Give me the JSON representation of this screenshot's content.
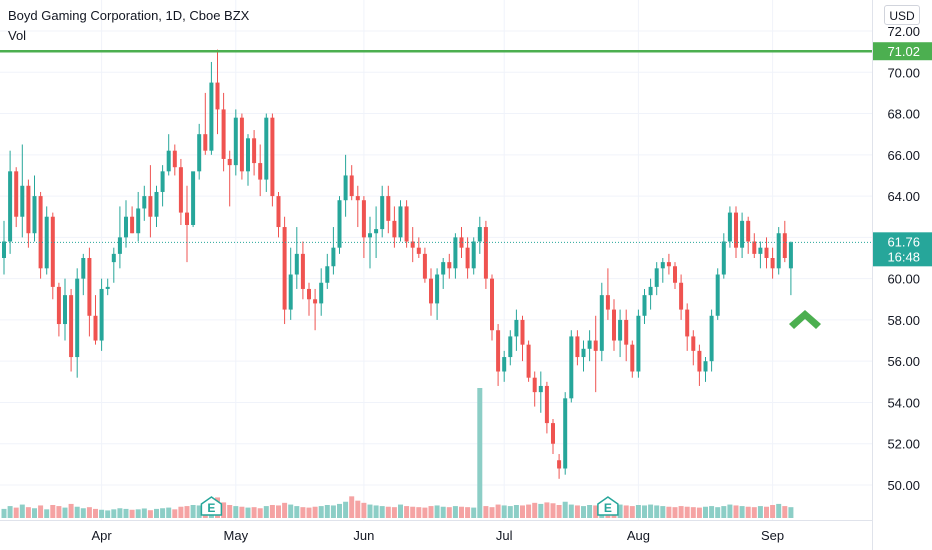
{
  "header": {
    "title": "Boyd Gaming Corporation, 1D, Cboe BZX",
    "volume_label": "Vol"
  },
  "currency": "USD",
  "price_axis": {
    "ticks": [
      "72.00",
      "70.00",
      "68.00",
      "66.00",
      "64.00",
      "62.00",
      "60.00",
      "58.00",
      "56.00",
      "54.00",
      "52.00",
      "50.00"
    ],
    "range": [
      48.6,
      73.3
    ]
  },
  "time_axis": {
    "labels": [
      "Apr",
      "May",
      "Jun",
      "Jul",
      "Aug",
      "Sep"
    ]
  },
  "resistance_line": {
    "price": 71.02,
    "label": "71.02",
    "color": "#4caf50"
  },
  "last_price": {
    "price": 61.76,
    "label": "61.76",
    "countdown": "16:48",
    "color": "#26a69a"
  },
  "earnings_markers": [
    {
      "label": "E",
      "month": "Apr-May"
    },
    {
      "label": "E",
      "month": "Jul-Aug"
    }
  ],
  "colors": {
    "up": "#26a69a",
    "down": "#ef5350",
    "vol_up": "#8ccec6",
    "vol_down": "#f5a3a3"
  },
  "annotation": {
    "type": "arrow-up",
    "color": "#4caf50"
  },
  "chart_data": {
    "type": "candlestick",
    "title": "Boyd Gaming Corporation, 1D, Cboe BZX",
    "ylim": [
      48.6,
      73.3
    ],
    "candles": [
      [
        61.0,
        62.8,
        60.2,
        61.8
      ],
      [
        61.8,
        66.2,
        61.2,
        65.2
      ],
      [
        65.2,
        65.4,
        62.5,
        63.0
      ],
      [
        63.0,
        66.5,
        62.0,
        64.5
      ],
      [
        64.5,
        64.8,
        61.5,
        62.2
      ],
      [
        62.2,
        65.0,
        61.8,
        64.0
      ],
      [
        64.0,
        64.2,
        60.0,
        60.5
      ],
      [
        60.5,
        63.5,
        60.2,
        63.0
      ],
      [
        63.0,
        63.2,
        59.0,
        59.6
      ],
      [
        59.6,
        59.8,
        57.2,
        57.8
      ],
      [
        57.8,
        60.0,
        57.0,
        59.2
      ],
      [
        59.2,
        59.5,
        55.5,
        56.2
      ],
      [
        56.2,
        60.5,
        55.2,
        60.0
      ],
      [
        60.0,
        61.2,
        59.2,
        61.0
      ],
      [
        61.0,
        61.5,
        57.2,
        58.2
      ],
      [
        58.2,
        59.2,
        56.8,
        57.0
      ],
      [
        57.0,
        60.0,
        56.5,
        59.5
      ],
      [
        59.5,
        60.0,
        59.2,
        59.6
      ],
      [
        60.8,
        61.5,
        59.8,
        61.2
      ],
      [
        61.2,
        63.5,
        60.5,
        62.0
      ],
      [
        62.0,
        63.8,
        61.5,
        63.0
      ],
      [
        63.0,
        63.5,
        62.2,
        62.2
      ],
      [
        62.2,
        64.2,
        61.8,
        63.4
      ],
      [
        63.4,
        64.5,
        62.8,
        64.0
      ],
      [
        64.0,
        65.5,
        62.0,
        63.0
      ],
      [
        63.0,
        64.5,
        62.5,
        64.2
      ],
      [
        64.2,
        65.5,
        63.5,
        65.2
      ],
      [
        65.2,
        67.0,
        65.0,
        66.2
      ],
      [
        66.2,
        66.5,
        65.0,
        65.4
      ],
      [
        65.4,
        65.8,
        62.6,
        63.2
      ],
      [
        63.2,
        64.5,
        60.8,
        62.6
      ],
      [
        62.6,
        65.0,
        62.5,
        65.2
      ],
      [
        65.2,
        67.5,
        64.8,
        67.0
      ],
      [
        67.0,
        69.0,
        66.0,
        66.2
      ],
      [
        66.2,
        70.5,
        66.0,
        69.5
      ],
      [
        69.5,
        71.1,
        67.0,
        68.2
      ],
      [
        68.2,
        69.0,
        65.2,
        65.8
      ],
      [
        65.8,
        66.2,
        63.5,
        65.5
      ],
      [
        65.5,
        68.2,
        65.0,
        67.8
      ],
      [
        67.8,
        68.0,
        64.8,
        65.2
      ],
      [
        65.2,
        67.0,
        64.5,
        66.8
      ],
      [
        66.8,
        67.2,
        65.0,
        65.6
      ],
      [
        65.6,
        66.5,
        64.0,
        64.8
      ],
      [
        64.8,
        68.0,
        64.2,
        67.8
      ],
      [
        67.8,
        68.0,
        63.5,
        64.0
      ],
      [
        64.0,
        64.2,
        62.0,
        62.5
      ],
      [
        62.5,
        63.0,
        57.8,
        58.5
      ],
      [
        58.5,
        61.5,
        58.0,
        60.2
      ],
      [
        60.2,
        62.5,
        59.5,
        61.2
      ],
      [
        61.2,
        61.8,
        59.0,
        59.5
      ],
      [
        59.5,
        59.8,
        58.2,
        59.0
      ],
      [
        59.0,
        59.5,
        57.5,
        58.8
      ],
      [
        58.8,
        60.5,
        58.2,
        59.8
      ],
      [
        59.8,
        61.2,
        59.5,
        60.6
      ],
      [
        60.6,
        62.5,
        60.2,
        61.5
      ],
      [
        61.5,
        64.0,
        61.2,
        63.8
      ],
      [
        63.8,
        66.0,
        63.0,
        65.0
      ],
      [
        65.0,
        65.5,
        63.8,
        64.0
      ],
      [
        64.0,
        64.5,
        62.5,
        63.8
      ],
      [
        63.8,
        64.0,
        61.0,
        62.0
      ],
      [
        62.0,
        63.0,
        60.5,
        62.2
      ],
      [
        62.2,
        63.5,
        61.0,
        62.4
      ],
      [
        62.4,
        64.5,
        62.0,
        64.0
      ],
      [
        64.0,
        64.5,
        62.2,
        62.8
      ],
      [
        62.8,
        63.5,
        61.5,
        62.0
      ],
      [
        62.0,
        63.8,
        61.8,
        63.5
      ],
      [
        63.5,
        63.8,
        61.5,
        61.8
      ],
      [
        61.8,
        62.5,
        60.8,
        61.5
      ],
      [
        61.5,
        62.0,
        61.0,
        61.2
      ],
      [
        61.2,
        61.5,
        59.8,
        60.0
      ],
      [
        60.0,
        60.5,
        58.2,
        58.8
      ],
      [
        58.8,
        60.5,
        58.0,
        60.2
      ],
      [
        60.2,
        61.0,
        59.5,
        60.8
      ],
      [
        60.8,
        61.2,
        60.0,
        60.5
      ],
      [
        60.5,
        62.2,
        60.0,
        62.0
      ],
      [
        62.0,
        62.5,
        61.0,
        61.5
      ],
      [
        61.5,
        62.0,
        60.0,
        60.5
      ],
      [
        60.5,
        62.0,
        60.2,
        61.8
      ],
      [
        61.8,
        63.0,
        61.2,
        62.5
      ],
      [
        62.5,
        62.8,
        59.5,
        60.0
      ],
      [
        60.0,
        60.2,
        57.0,
        57.5
      ],
      [
        57.5,
        57.8,
        54.8,
        55.5
      ],
      [
        55.5,
        56.5,
        55.0,
        56.2
      ],
      [
        56.2,
        57.5,
        55.8,
        57.2
      ],
      [
        57.2,
        58.5,
        56.5,
        58.0
      ],
      [
        58.0,
        58.2,
        56.0,
        56.8
      ],
      [
        56.8,
        57.0,
        55.0,
        55.2
      ],
      [
        55.2,
        55.5,
        53.8,
        54.5
      ],
      [
        54.5,
        55.5,
        53.5,
        54.8
      ],
      [
        54.8,
        55.0,
        52.5,
        53.0
      ],
      [
        53.0,
        53.2,
        51.5,
        52.0
      ],
      [
        51.2,
        51.5,
        50.3,
        50.8
      ],
      [
        50.8,
        54.5,
        50.5,
        54.2
      ],
      [
        54.2,
        57.5,
        54.0,
        57.2
      ],
      [
        57.2,
        57.5,
        55.8,
        56.2
      ],
      [
        56.2,
        57.0,
        55.5,
        56.6
      ],
      [
        56.6,
        57.5,
        56.0,
        57.0
      ],
      [
        57.0,
        58.2,
        54.5,
        56.5
      ],
      [
        56.5,
        59.8,
        56.0,
        59.2
      ],
      [
        59.2,
        60.5,
        58.0,
        58.5
      ],
      [
        58.5,
        59.0,
        56.5,
        57.0
      ],
      [
        57.0,
        58.5,
        56.2,
        58.0
      ],
      [
        58.0,
        58.5,
        56.0,
        56.8
      ],
      [
        56.8,
        57.0,
        55.2,
        55.5
      ],
      [
        55.5,
        58.5,
        55.2,
        58.2
      ],
      [
        58.2,
        59.5,
        57.8,
        59.2
      ],
      [
        59.2,
        60.0,
        58.5,
        59.6
      ],
      [
        59.6,
        60.8,
        59.2,
        60.5
      ],
      [
        60.5,
        61.0,
        59.8,
        60.8
      ],
      [
        60.8,
        61.2,
        60.2,
        60.6
      ],
      [
        60.6,
        60.8,
        59.5,
        59.8
      ],
      [
        59.8,
        60.2,
        58.0,
        58.5
      ],
      [
        58.5,
        58.8,
        56.5,
        57.2
      ],
      [
        57.2,
        57.5,
        55.8,
        56.5
      ],
      [
        56.5,
        56.8,
        54.8,
        55.5
      ],
      [
        55.5,
        56.2,
        55.0,
        56.0
      ],
      [
        56.0,
        58.5,
        55.5,
        58.2
      ],
      [
        58.2,
        60.5,
        58.0,
        60.2
      ],
      [
        60.2,
        62.2,
        60.0,
        61.8
      ],
      [
        61.8,
        63.5,
        61.5,
        63.2
      ],
      [
        63.2,
        63.5,
        61.0,
        61.5
      ],
      [
        61.5,
        63.2,
        61.0,
        62.8
      ],
      [
        62.8,
        63.0,
        61.2,
        61.8
      ],
      [
        61.8,
        62.2,
        61.0,
        61.2
      ],
      [
        61.2,
        61.8,
        60.5,
        61.5
      ],
      [
        61.5,
        62.0,
        60.5,
        61.0
      ],
      [
        61.0,
        61.5,
        60.0,
        60.5
      ],
      [
        60.5,
        62.5,
        60.2,
        62.2
      ],
      [
        62.2,
        62.8,
        60.8,
        61.0
      ],
      [
        60.5,
        61.8,
        59.2,
        61.76
      ]
    ],
    "volume": [
      0.42,
      0.55,
      0.48,
      0.62,
      0.5,
      0.45,
      0.58,
      0.4,
      0.6,
      0.55,
      0.48,
      0.65,
      0.52,
      0.45,
      0.5,
      0.42,
      0.38,
      0.35,
      0.4,
      0.45,
      0.42,
      0.38,
      0.4,
      0.44,
      0.36,
      0.42,
      0.45,
      0.48,
      0.4,
      0.52,
      0.55,
      0.6,
      0.58,
      0.62,
      0.7,
      0.95,
      0.72,
      0.6,
      0.55,
      0.52,
      0.48,
      0.5,
      0.45,
      0.55,
      0.6,
      0.58,
      0.7,
      0.62,
      0.55,
      0.5,
      0.48,
      0.52,
      0.55,
      0.6,
      0.58,
      0.65,
      0.75,
      1.0,
      0.8,
      0.7,
      0.62,
      0.58,
      0.55,
      0.52,
      0.5,
      0.62,
      0.55,
      0.52,
      0.5,
      0.48,
      0.55,
      0.58,
      0.52,
      0.5,
      0.55,
      0.52,
      0.5,
      0.48,
      6.0,
      0.55,
      0.5,
      0.62,
      0.58,
      0.55,
      0.6,
      0.58,
      0.62,
      0.7,
      0.65,
      0.72,
      0.68,
      0.6,
      0.75,
      0.62,
      0.58,
      0.55,
      0.6,
      0.58,
      0.62,
      0.65,
      0.7,
      0.62,
      0.58,
      0.55,
      0.6,
      0.58,
      0.62,
      0.58,
      0.55,
      0.52,
      0.5,
      0.55,
      0.52,
      0.5,
      0.48,
      0.52,
      0.55,
      0.5,
      0.55,
      0.62,
      0.58,
      0.55,
      0.52,
      0.5,
      0.55,
      0.52,
      0.6,
      0.65,
      0.55,
      0.5
    ]
  }
}
